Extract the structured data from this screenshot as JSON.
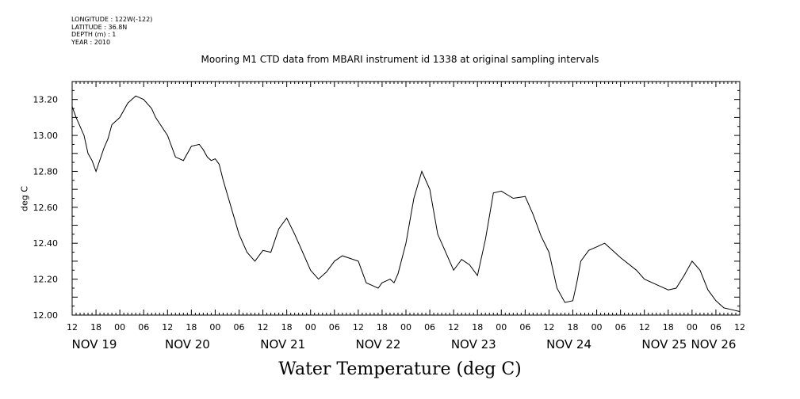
{
  "header": {
    "longitude": "LONGITUDE : 122W(-122)",
    "latitude": "LATITUDE : 36.8N",
    "depth": "DEPTH (m) : 1",
    "year": "YEAR : 2010"
  },
  "chart_data": {
    "type": "line",
    "title": "Mooring M1 CTD data from MBARI instrument id 1338 at original sampling intervals",
    "xlabel": "Water Temperature (deg C)",
    "ylabel": "deg C",
    "ylim": [
      12.0,
      13.3
    ],
    "xlim": [
      "2010-11-19T12:00",
      "2010-11-26T12:00"
    ],
    "y_ticks": [
      "12.00",
      "12.20",
      "12.40",
      "12.60",
      "12.80",
      "13.00",
      "13.20"
    ],
    "x_hour_ticks": [
      "12",
      "18",
      "00",
      "06",
      "12",
      "18",
      "00",
      "06",
      "12",
      "18",
      "00",
      "06",
      "12",
      "18",
      "00",
      "06",
      "12",
      "18",
      "00",
      "06",
      "12",
      "18",
      "00",
      "06",
      "12",
      "18",
      "00",
      "06",
      "12"
    ],
    "x_day_labels": [
      "NOV 19",
      "NOV 20",
      "NOV 21",
      "NOV 22",
      "NOV 23",
      "NOV 24",
      "NOV 25",
      "NOV 26"
    ],
    "grid": false,
    "line_color": "#000000",
    "series": [
      {
        "x": [
          "2010-11-19T12:00",
          "2010-11-19T13:00",
          "2010-11-19T15:00",
          "2010-11-19T16:00",
          "2010-11-19T17:00",
          "2010-11-19T18:00",
          "2010-11-19T20:00",
          "2010-11-19T21:00",
          "2010-11-19T22:00",
          "2010-11-20T00:00",
          "2010-11-20T02:00",
          "2010-11-20T04:00",
          "2010-11-20T06:00",
          "2010-11-20T08:00",
          "2010-11-20T09:00",
          "2010-11-20T12:00",
          "2010-11-20T14:00",
          "2010-11-20T16:00",
          "2010-11-20T18:00",
          "2010-11-20T20:00",
          "2010-11-20T21:00",
          "2010-11-20T22:00",
          "2010-11-20T23:00",
          "2010-11-21T00:00",
          "2010-11-21T01:00",
          "2010-11-21T02:00",
          "2010-11-21T04:00",
          "2010-11-21T06:00",
          "2010-11-21T08:00",
          "2010-11-21T10:00",
          "2010-11-21T12:00",
          "2010-11-21T14:00",
          "2010-11-21T16:00",
          "2010-11-21T18:00",
          "2010-11-21T20:00",
          "2010-11-22T00:00",
          "2010-11-22T02:00",
          "2010-11-22T04:00",
          "2010-11-22T06:00",
          "2010-11-22T08:00",
          "2010-11-22T12:00",
          "2010-11-22T14:00",
          "2010-11-22T16:00",
          "2010-11-22T17:00",
          "2010-11-22T18:00",
          "2010-11-22T19:00",
          "2010-11-22T20:00",
          "2010-11-22T21:00",
          "2010-11-22T22:00",
          "2010-11-23T00:00",
          "2010-11-23T02:00",
          "2010-11-23T04:00",
          "2010-11-23T06:00",
          "2010-11-23T08:00",
          "2010-11-23T10:00",
          "2010-11-23T11:00",
          "2010-11-23T12:00",
          "2010-11-23T13:00",
          "2010-11-23T14:00",
          "2010-11-23T16:00",
          "2010-11-23T18:00",
          "2010-11-23T20:00",
          "2010-11-23T22:00",
          "2010-11-24T00:00",
          "2010-11-24T03:00",
          "2010-11-24T06:00",
          "2010-11-24T08:00",
          "2010-11-24T10:00",
          "2010-11-24T12:00",
          "2010-11-24T14:00",
          "2010-11-24T16:00",
          "2010-11-24T18:00",
          "2010-11-24T19:00",
          "2010-11-24T20:00",
          "2010-11-24T22:00",
          "2010-11-25T00:00",
          "2010-11-25T02:00",
          "2010-11-25T06:00",
          "2010-11-25T10:00",
          "2010-11-25T12:00",
          "2010-11-25T16:00",
          "2010-11-25T18:00",
          "2010-11-25T20:00",
          "2010-11-25T22:00",
          "2010-11-26T00:00",
          "2010-11-26T02:00",
          "2010-11-26T04:00",
          "2010-11-26T06:00",
          "2010-11-26T08:00",
          "2010-11-26T10:00",
          "2010-11-26T12:00"
        ],
        "y": [
          13.16,
          13.1,
          13.0,
          12.9,
          12.86,
          12.8,
          12.93,
          12.98,
          13.06,
          13.1,
          13.18,
          13.22,
          13.2,
          13.15,
          13.1,
          13.0,
          12.88,
          12.86,
          12.94,
          12.95,
          12.92,
          12.88,
          12.86,
          12.87,
          12.84,
          12.75,
          12.6,
          12.45,
          12.35,
          12.3,
          12.36,
          12.35,
          12.48,
          12.54,
          12.45,
          12.25,
          12.2,
          12.24,
          12.3,
          12.33,
          12.3,
          12.18,
          12.16,
          12.15,
          12.18,
          12.19,
          12.2,
          12.18,
          12.23,
          12.4,
          12.65,
          12.8,
          12.7,
          12.45,
          12.35,
          12.3,
          12.25,
          12.28,
          12.31,
          12.28,
          12.22,
          12.42,
          12.68,
          12.69,
          12.65,
          12.66,
          12.56,
          12.44,
          12.35,
          12.15,
          12.07,
          12.08,
          12.18,
          12.3,
          12.36,
          12.38,
          12.4,
          12.32,
          12.25,
          12.2,
          12.16,
          12.14,
          12.15,
          12.22,
          12.3,
          12.25,
          12.14,
          12.08,
          12.04,
          12.03,
          12.02
        ]
      }
    ]
  }
}
